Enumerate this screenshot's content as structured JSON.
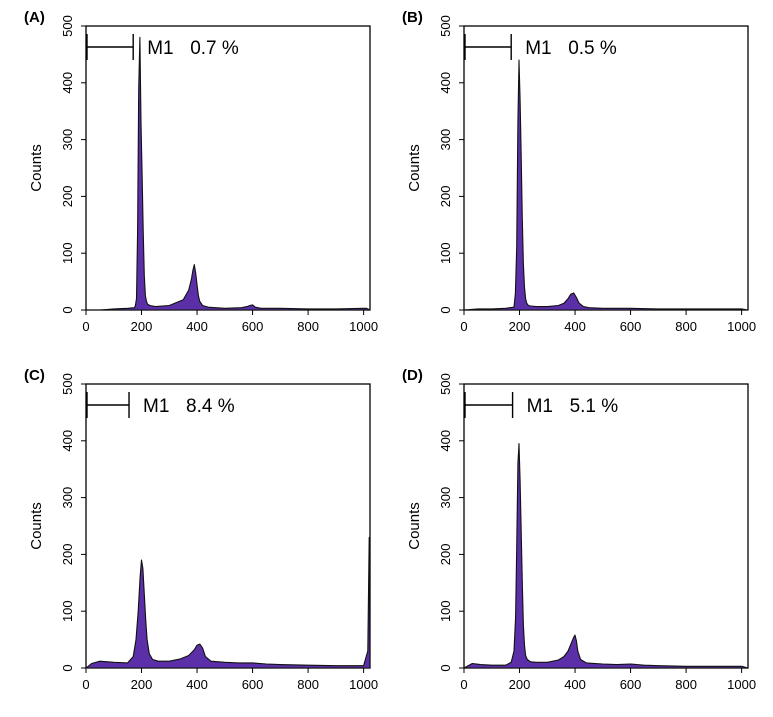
{
  "chart_data": [
    {
      "type": "area",
      "panel_label": "(A)",
      "marker": {
        "name": "M1",
        "value": "0.7 %",
        "range": [
          0,
          170
        ]
      },
      "ylabel": "Counts",
      "xlim": [
        0,
        1023
      ],
      "ylim": [
        0,
        500
      ],
      "xticks": [
        "0",
        "200",
        "400",
        "600",
        "800",
        "1000"
      ],
      "yticks": [
        "0",
        "100",
        "200",
        "300",
        "400",
        "500"
      ],
      "color": "#5b2fa8",
      "x": [
        0,
        50,
        100,
        150,
        175,
        178,
        182,
        186,
        190,
        194,
        198,
        202,
        206,
        210,
        214,
        218,
        222,
        230,
        250,
        300,
        350,
        370,
        380,
        385,
        390,
        395,
        400,
        405,
        410,
        420,
        440,
        500,
        560,
        580,
        590,
        600,
        610,
        630,
        700,
        800,
        900,
        1000,
        1010,
        1023
      ],
      "y": [
        0,
        0,
        2,
        3,
        4,
        8,
        20,
        140,
        390,
        480,
        330,
        240,
        140,
        60,
        25,
        15,
        10,
        8,
        6,
        8,
        18,
        35,
        55,
        70,
        80,
        65,
        45,
        25,
        15,
        8,
        5,
        3,
        4,
        6,
        8,
        9,
        5,
        3,
        3,
        2,
        2,
        3,
        3,
        0
      ]
    },
    {
      "type": "area",
      "panel_label": "(B)",
      "marker": {
        "name": "M1",
        "value": "0.5 %",
        "range": [
          0,
          170
        ]
      },
      "ylabel": "Counts",
      "xlim": [
        0,
        1023
      ],
      "ylim": [
        0,
        500
      ],
      "xticks": [
        "0",
        "200",
        "400",
        "600",
        "800",
        "1000"
      ],
      "yticks": [
        "0",
        "100",
        "200",
        "300",
        "400",
        "500"
      ],
      "color": "#5b2fa8",
      "x": [
        0,
        50,
        100,
        150,
        180,
        185,
        190,
        194,
        198,
        202,
        206,
        210,
        214,
        218,
        222,
        226,
        232,
        240,
        260,
        300,
        340,
        360,
        375,
        385,
        395,
        405,
        415,
        430,
        450,
        500,
        600,
        700,
        800,
        900,
        1000,
        1023
      ],
      "y": [
        0,
        2,
        2,
        3,
        5,
        30,
        110,
        330,
        440,
        370,
        270,
        160,
        80,
        40,
        20,
        12,
        8,
        7,
        6,
        6,
        8,
        12,
        20,
        28,
        30,
        22,
        12,
        6,
        4,
        3,
        3,
        2,
        2,
        2,
        2,
        0
      ]
    },
    {
      "type": "area",
      "panel_label": "(C)",
      "marker": {
        "name": "M1",
        "value": "8.4 %",
        "range": [
          0,
          155
        ]
      },
      "ylabel": "Counts",
      "xlim": [
        0,
        1023
      ],
      "ylim": [
        0,
        500
      ],
      "xticks": [
        "0",
        "200",
        "400",
        "600",
        "800",
        "1000"
      ],
      "yticks": [
        "0",
        "100",
        "200",
        "300",
        "400",
        "500"
      ],
      "color": "#5b2fa8",
      "x": [
        0,
        20,
        50,
        100,
        150,
        170,
        180,
        188,
        195,
        200,
        205,
        210,
        215,
        220,
        228,
        240,
        260,
        300,
        340,
        370,
        390,
        400,
        410,
        420,
        430,
        450,
        500,
        550,
        600,
        650,
        700,
        800,
        900,
        1000,
        1015,
        1020,
        1023
      ],
      "y": [
        0,
        8,
        12,
        10,
        9,
        20,
        50,
        100,
        160,
        190,
        175,
        130,
        85,
        50,
        25,
        15,
        12,
        12,
        16,
        22,
        32,
        40,
        42,
        35,
        20,
        12,
        10,
        9,
        9,
        7,
        6,
        5,
        4,
        4,
        30,
        230,
        0
      ]
    },
    {
      "type": "area",
      "panel_label": "(D)",
      "marker": {
        "name": "M1",
        "value": "5.1 %",
        "range": [
          0,
          175
        ]
      },
      "ylabel": "Counts",
      "xlim": [
        0,
        1023
      ],
      "ylim": [
        0,
        500
      ],
      "xticks": [
        "0",
        "200",
        "400",
        "600",
        "800",
        "1000"
      ],
      "yticks": [
        "0",
        "100",
        "200",
        "300",
        "400",
        "500"
      ],
      "color": "#5b2fa8",
      "x": [
        0,
        30,
        60,
        100,
        150,
        170,
        180,
        186,
        190,
        194,
        198,
        202,
        206,
        210,
        214,
        218,
        222,
        228,
        240,
        260,
        300,
        340,
        360,
        375,
        385,
        395,
        400,
        405,
        410,
        420,
        440,
        500,
        550,
        600,
        650,
        700,
        800,
        900,
        1000,
        1023
      ],
      "y": [
        0,
        8,
        6,
        5,
        5,
        10,
        30,
        90,
        210,
        360,
        395,
        330,
        240,
        150,
        75,
        40,
        22,
        15,
        11,
        10,
        10,
        14,
        20,
        30,
        42,
        54,
        58,
        48,
        30,
        15,
        9,
        7,
        6,
        7,
        5,
        4,
        3,
        3,
        3,
        0
      ]
    }
  ]
}
